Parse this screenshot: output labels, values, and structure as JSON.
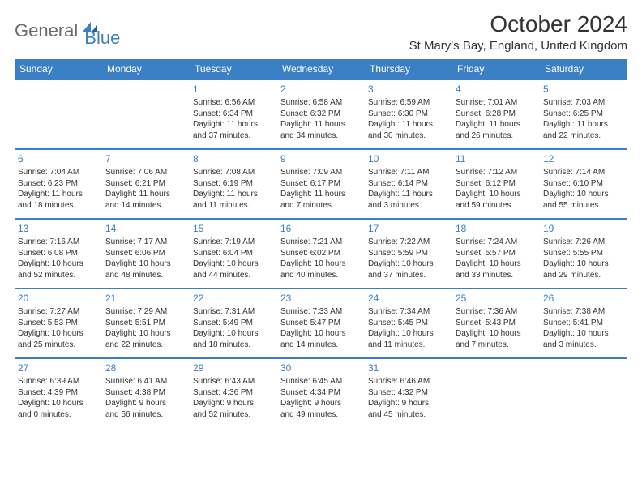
{
  "logo": {
    "text1": "General",
    "text2": "Blue"
  },
  "title": "October 2024",
  "location": "St Mary's Bay, England, United Kingdom",
  "colors": {
    "accent": "#3b7fc4",
    "text": "#333333",
    "logo_gray": "#6a6a6a",
    "background": "#ffffff"
  },
  "day_headers": [
    "Sunday",
    "Monday",
    "Tuesday",
    "Wednesday",
    "Thursday",
    "Friday",
    "Saturday"
  ],
  "weeks": [
    [
      null,
      null,
      {
        "n": "1",
        "sr": "Sunrise: 6:56 AM",
        "ss": "Sunset: 6:34 PM",
        "d1": "Daylight: 11 hours",
        "d2": "and 37 minutes."
      },
      {
        "n": "2",
        "sr": "Sunrise: 6:58 AM",
        "ss": "Sunset: 6:32 PM",
        "d1": "Daylight: 11 hours",
        "d2": "and 34 minutes."
      },
      {
        "n": "3",
        "sr": "Sunrise: 6:59 AM",
        "ss": "Sunset: 6:30 PM",
        "d1": "Daylight: 11 hours",
        "d2": "and 30 minutes."
      },
      {
        "n": "4",
        "sr": "Sunrise: 7:01 AM",
        "ss": "Sunset: 6:28 PM",
        "d1": "Daylight: 11 hours",
        "d2": "and 26 minutes."
      },
      {
        "n": "5",
        "sr": "Sunrise: 7:03 AM",
        "ss": "Sunset: 6:25 PM",
        "d1": "Daylight: 11 hours",
        "d2": "and 22 minutes."
      }
    ],
    [
      {
        "n": "6",
        "sr": "Sunrise: 7:04 AM",
        "ss": "Sunset: 6:23 PM",
        "d1": "Daylight: 11 hours",
        "d2": "and 18 minutes."
      },
      {
        "n": "7",
        "sr": "Sunrise: 7:06 AM",
        "ss": "Sunset: 6:21 PM",
        "d1": "Daylight: 11 hours",
        "d2": "and 14 minutes."
      },
      {
        "n": "8",
        "sr": "Sunrise: 7:08 AM",
        "ss": "Sunset: 6:19 PM",
        "d1": "Daylight: 11 hours",
        "d2": "and 11 minutes."
      },
      {
        "n": "9",
        "sr": "Sunrise: 7:09 AM",
        "ss": "Sunset: 6:17 PM",
        "d1": "Daylight: 11 hours",
        "d2": "and 7 minutes."
      },
      {
        "n": "10",
        "sr": "Sunrise: 7:11 AM",
        "ss": "Sunset: 6:14 PM",
        "d1": "Daylight: 11 hours",
        "d2": "and 3 minutes."
      },
      {
        "n": "11",
        "sr": "Sunrise: 7:12 AM",
        "ss": "Sunset: 6:12 PM",
        "d1": "Daylight: 10 hours",
        "d2": "and 59 minutes."
      },
      {
        "n": "12",
        "sr": "Sunrise: 7:14 AM",
        "ss": "Sunset: 6:10 PM",
        "d1": "Daylight: 10 hours",
        "d2": "and 55 minutes."
      }
    ],
    [
      {
        "n": "13",
        "sr": "Sunrise: 7:16 AM",
        "ss": "Sunset: 6:08 PM",
        "d1": "Daylight: 10 hours",
        "d2": "and 52 minutes."
      },
      {
        "n": "14",
        "sr": "Sunrise: 7:17 AM",
        "ss": "Sunset: 6:06 PM",
        "d1": "Daylight: 10 hours",
        "d2": "and 48 minutes."
      },
      {
        "n": "15",
        "sr": "Sunrise: 7:19 AM",
        "ss": "Sunset: 6:04 PM",
        "d1": "Daylight: 10 hours",
        "d2": "and 44 minutes."
      },
      {
        "n": "16",
        "sr": "Sunrise: 7:21 AM",
        "ss": "Sunset: 6:02 PM",
        "d1": "Daylight: 10 hours",
        "d2": "and 40 minutes."
      },
      {
        "n": "17",
        "sr": "Sunrise: 7:22 AM",
        "ss": "Sunset: 5:59 PM",
        "d1": "Daylight: 10 hours",
        "d2": "and 37 minutes."
      },
      {
        "n": "18",
        "sr": "Sunrise: 7:24 AM",
        "ss": "Sunset: 5:57 PM",
        "d1": "Daylight: 10 hours",
        "d2": "and 33 minutes."
      },
      {
        "n": "19",
        "sr": "Sunrise: 7:26 AM",
        "ss": "Sunset: 5:55 PM",
        "d1": "Daylight: 10 hours",
        "d2": "and 29 minutes."
      }
    ],
    [
      {
        "n": "20",
        "sr": "Sunrise: 7:27 AM",
        "ss": "Sunset: 5:53 PM",
        "d1": "Daylight: 10 hours",
        "d2": "and 25 minutes."
      },
      {
        "n": "21",
        "sr": "Sunrise: 7:29 AM",
        "ss": "Sunset: 5:51 PM",
        "d1": "Daylight: 10 hours",
        "d2": "and 22 minutes."
      },
      {
        "n": "22",
        "sr": "Sunrise: 7:31 AM",
        "ss": "Sunset: 5:49 PM",
        "d1": "Daylight: 10 hours",
        "d2": "and 18 minutes."
      },
      {
        "n": "23",
        "sr": "Sunrise: 7:33 AM",
        "ss": "Sunset: 5:47 PM",
        "d1": "Daylight: 10 hours",
        "d2": "and 14 minutes."
      },
      {
        "n": "24",
        "sr": "Sunrise: 7:34 AM",
        "ss": "Sunset: 5:45 PM",
        "d1": "Daylight: 10 hours",
        "d2": "and 11 minutes."
      },
      {
        "n": "25",
        "sr": "Sunrise: 7:36 AM",
        "ss": "Sunset: 5:43 PM",
        "d1": "Daylight: 10 hours",
        "d2": "and 7 minutes."
      },
      {
        "n": "26",
        "sr": "Sunrise: 7:38 AM",
        "ss": "Sunset: 5:41 PM",
        "d1": "Daylight: 10 hours",
        "d2": "and 3 minutes."
      }
    ],
    [
      {
        "n": "27",
        "sr": "Sunrise: 6:39 AM",
        "ss": "Sunset: 4:39 PM",
        "d1": "Daylight: 10 hours",
        "d2": "and 0 minutes."
      },
      {
        "n": "28",
        "sr": "Sunrise: 6:41 AM",
        "ss": "Sunset: 4:38 PM",
        "d1": "Daylight: 9 hours",
        "d2": "and 56 minutes."
      },
      {
        "n": "29",
        "sr": "Sunrise: 6:43 AM",
        "ss": "Sunset: 4:36 PM",
        "d1": "Daylight: 9 hours",
        "d2": "and 52 minutes."
      },
      {
        "n": "30",
        "sr": "Sunrise: 6:45 AM",
        "ss": "Sunset: 4:34 PM",
        "d1": "Daylight: 9 hours",
        "d2": "and 49 minutes."
      },
      {
        "n": "31",
        "sr": "Sunrise: 6:46 AM",
        "ss": "Sunset: 4:32 PM",
        "d1": "Daylight: 9 hours",
        "d2": "and 45 minutes."
      },
      null,
      null
    ]
  ]
}
